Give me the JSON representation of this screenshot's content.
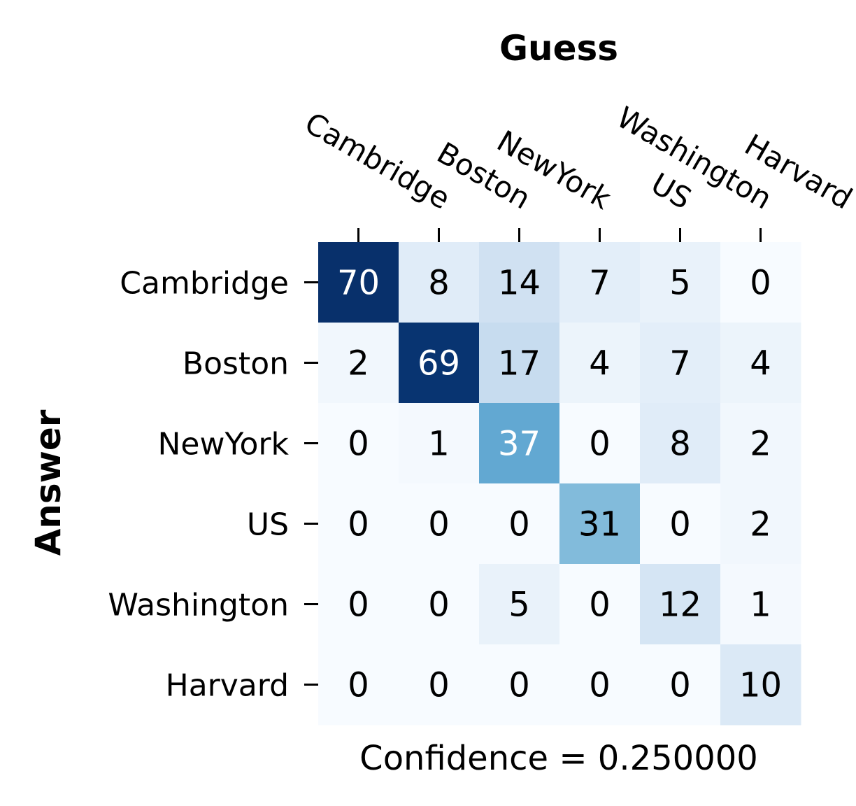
{
  "chart_data": {
    "type": "heatmap",
    "title": "Guess",
    "ylabel": "Answer",
    "xlabel": "Confidence = 0.250000",
    "x_categories": [
      "Cambridge",
      "Boston",
      "NewYork",
      "US",
      "Washington",
      "Harvard"
    ],
    "y_categories": [
      "Cambridge",
      "Boston",
      "NewYork",
      "US",
      "Washington",
      "Harvard"
    ],
    "values": [
      [
        70,
        8,
        14,
        7,
        5,
        0
      ],
      [
        2,
        69,
        17,
        4,
        7,
        4
      ],
      [
        0,
        1,
        37,
        0,
        8,
        2
      ],
      [
        0,
        0,
        0,
        31,
        0,
        2
      ],
      [
        0,
        0,
        5,
        0,
        12,
        1
      ],
      [
        0,
        0,
        0,
        0,
        0,
        10
      ]
    ],
    "colormap": "Blues",
    "color_range": [
      0,
      70
    ],
    "colorbar": false,
    "grid": false
  }
}
